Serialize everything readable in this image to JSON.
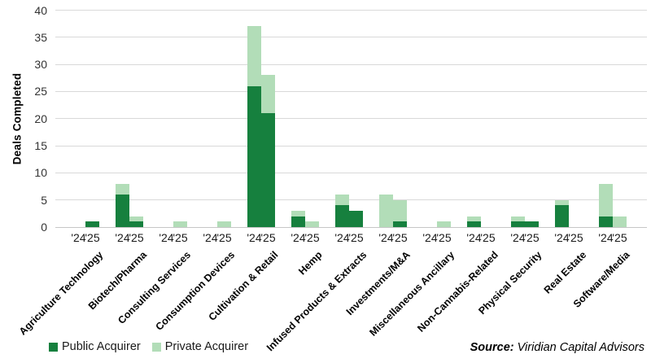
{
  "chart_data": {
    "type": "bar",
    "stacked": true,
    "grid": true,
    "legend_position": "bottom-left",
    "ylabel": "Deals Completed",
    "ylim": [
      0,
      40
    ],
    "ytick_step": 5,
    "yticks": [
      0,
      5,
      10,
      15,
      20,
      25,
      30,
      35,
      40
    ],
    "year_labels": [
      "'24",
      "'25"
    ],
    "categories": [
      "Agriculture Technology",
      "Biotech/Pharma",
      "Consulting Services",
      "Consumption Devices",
      "Cultivation & Retail",
      "Hemp",
      "Infused Products & Extracts",
      "Investments/M&A",
      "Miscellaneous Ancillary",
      "Non-Cannabis-Related",
      "Physical Security",
      "Real Estate",
      "Software/Media"
    ],
    "series": [
      {
        "name": "Public Acquirer",
        "color": "#16803e",
        "y24": [
          0,
          6,
          0,
          0,
          26,
          2,
          4,
          0,
          0,
          1,
          1,
          4,
          2
        ],
        "y25": [
          1,
          1,
          0,
          0,
          21,
          0,
          3,
          1,
          0,
          0,
          1,
          0,
          0
        ]
      },
      {
        "name": "Private Acquirer",
        "color": "#b2ddb8",
        "y24": [
          0,
          2,
          0,
          0,
          11,
          1,
          2,
          6,
          0,
          1,
          1,
          1,
          6
        ],
        "y25": [
          0,
          1,
          1,
          1,
          7,
          1,
          0,
          4,
          1,
          0,
          0,
          0,
          2
        ]
      }
    ]
  },
  "footer": {
    "source_label": "Source:",
    "source_text": " Viridian Capital Advisors"
  }
}
